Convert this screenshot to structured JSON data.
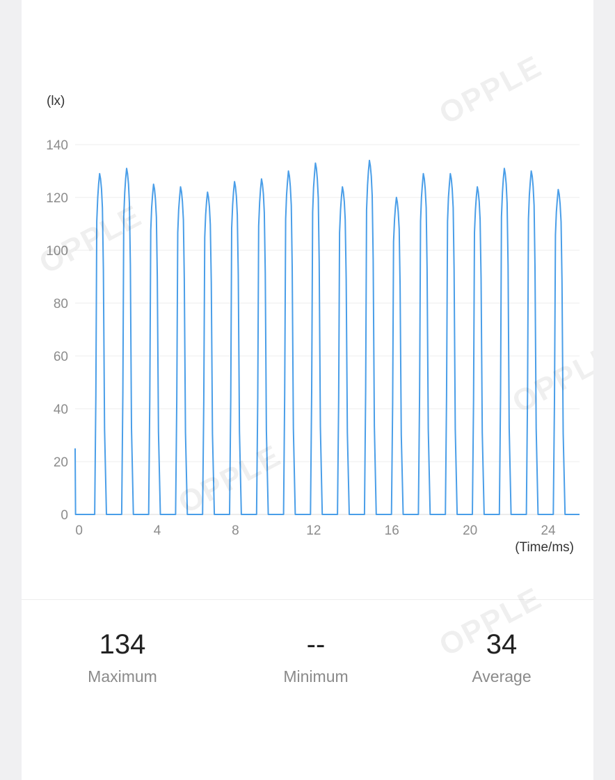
{
  "watermark": "OPPLE",
  "chart_data": {
    "type": "line",
    "unit_label": "(lx)",
    "xlabel": "(Time/ms)",
    "ylim": [
      0,
      140
    ],
    "xlim": [
      -0.2,
      25.6
    ],
    "y_ticks": [
      "0",
      "20",
      "40",
      "60",
      "80",
      "100",
      "120",
      "140"
    ],
    "x_ticks": [
      "0",
      "4",
      "8",
      "12",
      "16",
      "20",
      "24"
    ],
    "x_tick_values": [
      0,
      4,
      8,
      12,
      16,
      20,
      24
    ],
    "grid": true,
    "line_color": "#4a9ee8",
    "initial_spike": 25,
    "pulse_period_ms": 1.38,
    "pulse_start_ms": 0.8,
    "pulse_width_ms": 0.6,
    "pulse_peaks": [
      129,
      131,
      125,
      124,
      122,
      126,
      127,
      130,
      133,
      124,
      134,
      120,
      129,
      129,
      124,
      131,
      130,
      123
    ]
  },
  "stats": {
    "maximum": {
      "value": "134",
      "label": "Maximum"
    },
    "minimum": {
      "value": "--",
      "label": "Minimum"
    },
    "average": {
      "value": "34",
      "label": "Average"
    }
  }
}
